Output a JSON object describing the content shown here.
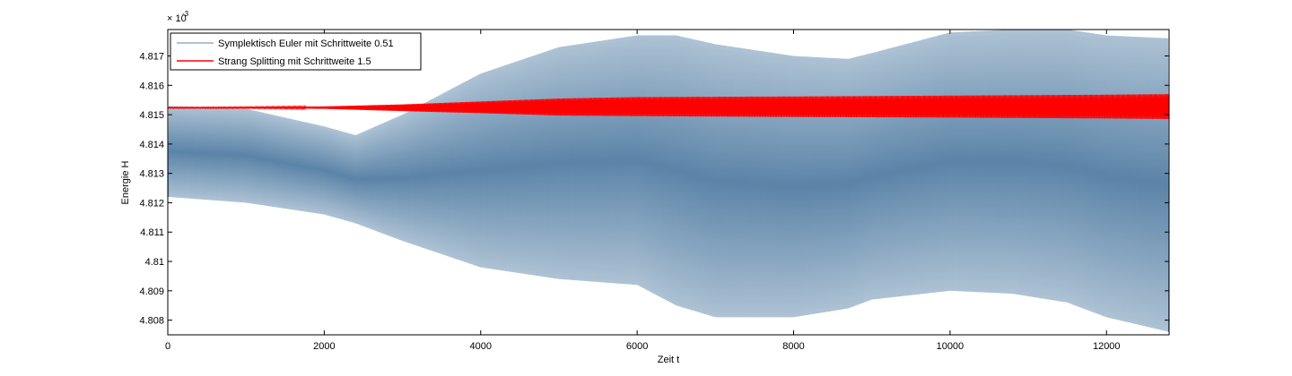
{
  "chart_data": {
    "type": "line",
    "title": "",
    "xlabel": "Zeit t",
    "ylabel": "Energie H",
    "y_exponent_label": "× 10",
    "y_exponent_power": "-3",
    "xlim": [
      0,
      12800
    ],
    "ylim": [
      4.8075,
      4.8179
    ],
    "x_ticks": [
      0,
      2000,
      4000,
      6000,
      8000,
      10000,
      12000
    ],
    "x_tick_labels": [
      "0",
      "2000",
      "4000",
      "6000",
      "8000",
      "10000",
      "12000"
    ],
    "y_ticks": [
      4.808,
      4.809,
      4.81,
      4.811,
      4.812,
      4.813,
      4.814,
      4.815,
      4.816,
      4.817
    ],
    "y_tick_labels": [
      "4.808",
      "4.809",
      "4.81",
      "4.811",
      "4.812",
      "4.813",
      "4.814",
      "4.815",
      "4.816",
      "4.817"
    ],
    "grid": false,
    "legend_position": "top-left",
    "series": [
      {
        "name": "Symplektisch Euler mit Schrittweite 0.51",
        "color": "#5b84a8",
        "x": [
          0,
          1000,
          2000,
          2400,
          3000,
          4000,
          5000,
          6000,
          6500,
          7000,
          8000,
          8700,
          9000,
          10000,
          10800,
          11500,
          12000,
          12800
        ],
        "upper": [
          4.8153,
          4.8152,
          4.8146,
          4.8143,
          4.815,
          4.8164,
          4.8173,
          4.8177,
          4.8177,
          4.8174,
          4.817,
          4.8169,
          4.8171,
          4.8178,
          4.8179,
          4.8179,
          4.8177,
          4.8176
        ],
        "lower": [
          4.8122,
          4.812,
          4.8116,
          4.8113,
          4.8107,
          4.8098,
          4.8094,
          4.8092,
          4.8085,
          4.8081,
          4.8081,
          4.8084,
          4.8087,
          4.809,
          4.8089,
          4.8086,
          4.8081,
          4.8076
        ]
      },
      {
        "name": "Strang Splitting mit Schrittweite 1.5",
        "color": "#ff0000",
        "x": [
          0,
          1000,
          2000,
          3000,
          4000,
          5000,
          6000,
          8000,
          10000,
          12000,
          12800
        ],
        "upper": [
          4.81525,
          4.81526,
          4.81528,
          4.81535,
          4.81545,
          4.81555,
          4.8156,
          4.81562,
          4.81565,
          4.81568,
          4.8157
        ],
        "lower": [
          4.81522,
          4.81522,
          4.8152,
          4.81512,
          4.81505,
          4.81497,
          4.81495,
          4.81492,
          4.8149,
          4.81487,
          4.81485
        ]
      }
    ]
  }
}
